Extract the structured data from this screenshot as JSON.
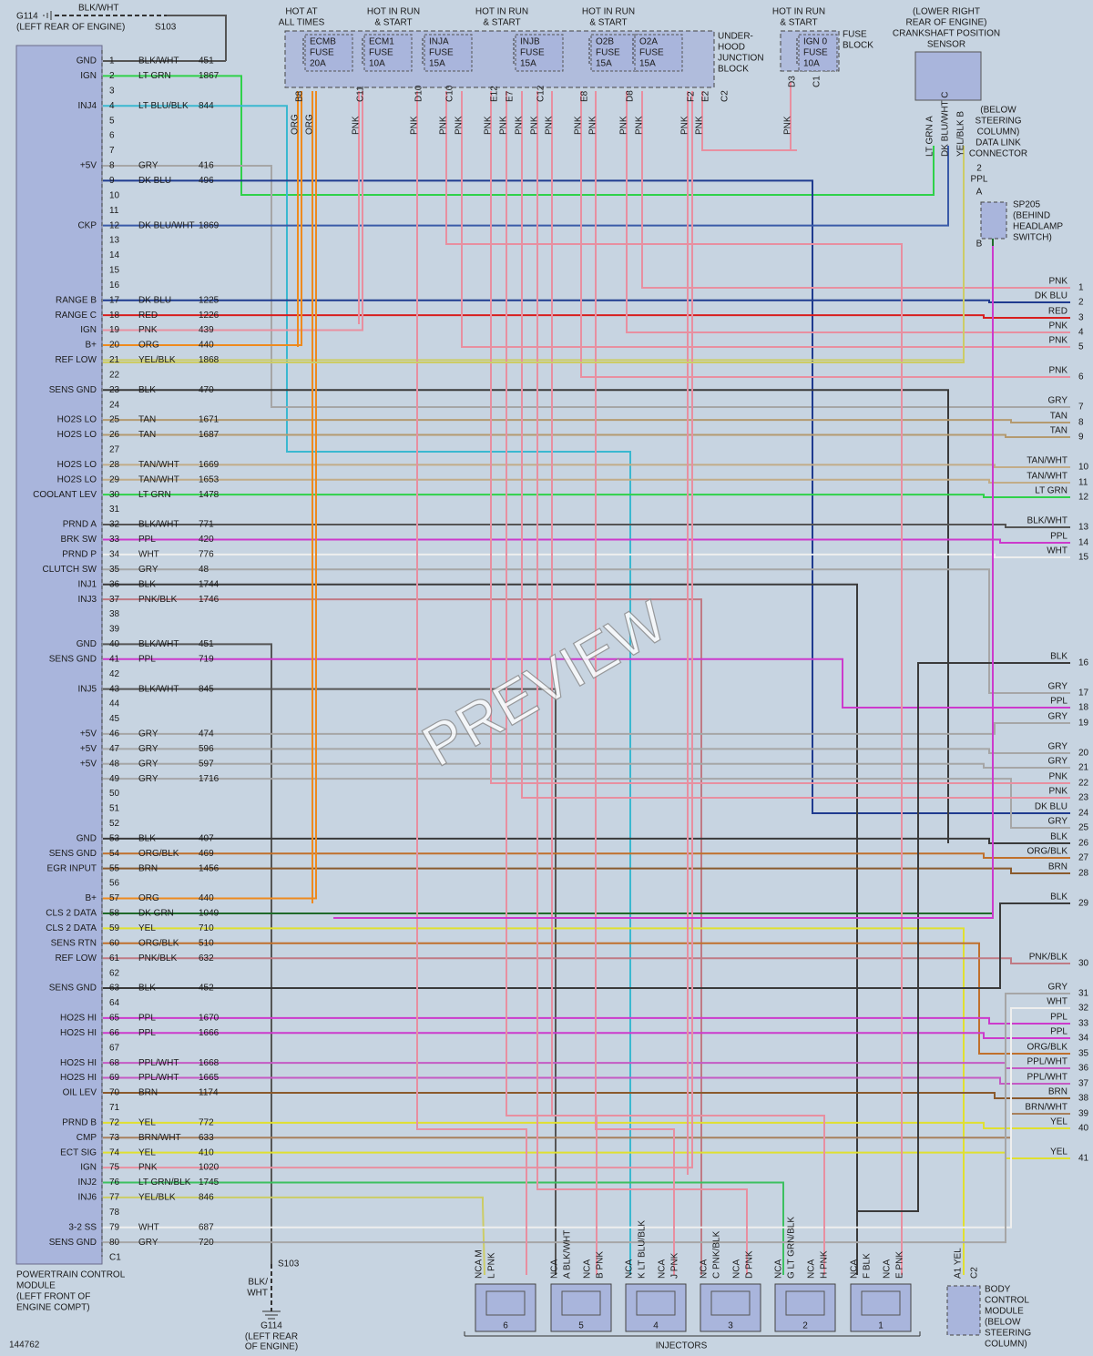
{
  "watermark": "PREVIEW",
  "diagram_id": "144762",
  "ground_top": {
    "wire": "BLK/WHT",
    "name": "G114",
    "location": "(LEFT REAR OF ENGINE)",
    "splice": "S103"
  },
  "ground_bottom": {
    "splice": "S103",
    "wire": [
      "BLK/",
      "WHT"
    ],
    "name": "G114",
    "location": [
      "(LEFT REAR",
      "OF ENGINE)"
    ]
  },
  "pcm": {
    "name": [
      "POWERTRAIN CONTROL",
      "MODULE",
      "(LEFT FRONT OF",
      "ENGINE COMPT)"
    ],
    "connector": "C1",
    "pins": [
      [
        "1",
        "GND",
        "BLK/WHT",
        "451"
      ],
      [
        "2",
        "IGN",
        "LT GRN",
        "1867"
      ],
      [
        "3",
        null,
        null,
        null
      ],
      [
        "4",
        "INJ4",
        "LT BLU/BLK",
        "844"
      ],
      [
        "5",
        null,
        null,
        null
      ],
      [
        "6",
        null,
        null,
        null
      ],
      [
        "7",
        null,
        null,
        null
      ],
      [
        "8",
        "+5V",
        "GRY",
        "416"
      ],
      [
        "9",
        null,
        "DK BLU",
        "496"
      ],
      [
        "10",
        null,
        null,
        null
      ],
      [
        "11",
        null,
        null,
        null
      ],
      [
        "12",
        "CKP",
        "DK BLU/WHT",
        "1869"
      ],
      [
        "13",
        null,
        null,
        null
      ],
      [
        "14",
        null,
        null,
        null
      ],
      [
        "15",
        null,
        null,
        null
      ],
      [
        "16",
        null,
        null,
        null
      ],
      [
        "17",
        "RANGE B",
        "DK BLU",
        "1225"
      ],
      [
        "18",
        "RANGE C",
        "RED",
        "1226"
      ],
      [
        "19",
        "IGN",
        "PNK",
        "439"
      ],
      [
        "20",
        "B+",
        "ORG",
        "440"
      ],
      [
        "21",
        "REF LOW",
        "YEL/BLK",
        "1868"
      ],
      [
        "22",
        null,
        null,
        null
      ],
      [
        "23",
        "SENS GND",
        "BLK",
        "470"
      ],
      [
        "24",
        null,
        null,
        null
      ],
      [
        "25",
        "HO2S LO",
        "TAN",
        "1671"
      ],
      [
        "26",
        "HO2S LO",
        "TAN",
        "1687"
      ],
      [
        "27",
        null,
        null,
        null
      ],
      [
        "28",
        "HO2S LO",
        "TAN/WHT",
        "1669"
      ],
      [
        "29",
        "HO2S LO",
        "TAN/WHT",
        "1653"
      ],
      [
        "30",
        "COOLANT LEV",
        "LT GRN",
        "1478"
      ],
      [
        "31",
        null,
        null,
        null
      ],
      [
        "32",
        "PRND A",
        "BLK/WHT",
        "771"
      ],
      [
        "33",
        "BRK SW",
        "PPL",
        "420"
      ],
      [
        "34",
        "PRND P",
        "WHT",
        "776"
      ],
      [
        "35",
        "CLUTCH SW",
        "GRY",
        "48"
      ],
      [
        "36",
        "INJ1",
        "BLK",
        "1744"
      ],
      [
        "37",
        "INJ3",
        "PNK/BLK",
        "1746"
      ],
      [
        "38",
        null,
        null,
        null
      ],
      [
        "39",
        null,
        null,
        null
      ],
      [
        "40",
        "GND",
        "BLK/WHT",
        "451"
      ],
      [
        "41",
        "SENS GND",
        "PPL",
        "719"
      ],
      [
        "42",
        null,
        null,
        null
      ],
      [
        "43",
        "INJ5",
        "BLK/WHT",
        "845"
      ],
      [
        "44",
        null,
        null,
        null
      ],
      [
        "45",
        null,
        null,
        null
      ],
      [
        "46",
        "+5V",
        "GRY",
        "474"
      ],
      [
        "47",
        "+5V",
        "GRY",
        "596"
      ],
      [
        "48",
        "+5V",
        "GRY",
        "597"
      ],
      [
        "49",
        null,
        "GRY",
        "1716"
      ],
      [
        "50",
        null,
        null,
        null
      ],
      [
        "51",
        null,
        null,
        null
      ],
      [
        "52",
        null,
        null,
        null
      ],
      [
        "53",
        "GND",
        "BLK",
        "407"
      ],
      [
        "54",
        "SENS GND",
        "ORG/BLK",
        "469"
      ],
      [
        "55",
        "EGR INPUT",
        "BRN",
        "1456"
      ],
      [
        "56",
        null,
        null,
        null
      ],
      [
        "57",
        "B+",
        "ORG",
        "440"
      ],
      [
        "58",
        "CLS 2 DATA",
        "DK GRN",
        "1049"
      ],
      [
        "59",
        "CLS 2 DATA",
        "YEL",
        "710"
      ],
      [
        "60",
        "SENS RTN",
        "ORG/BLK",
        "510"
      ],
      [
        "61",
        "REF LOW",
        "PNK/BLK",
        "632"
      ],
      [
        "62",
        null,
        null,
        null
      ],
      [
        "63",
        "SENS GND",
        "BLK",
        "452"
      ],
      [
        "64",
        null,
        null,
        null
      ],
      [
        "65",
        "HO2S HI",
        "PPL",
        "1670"
      ],
      [
        "66",
        "HO2S HI",
        "PPL",
        "1666"
      ],
      [
        "67",
        null,
        null,
        null
      ],
      [
        "68",
        "HO2S HI",
        "PPL/WHT",
        "1668"
      ],
      [
        "69",
        "HO2S HI",
        "PPL/WHT",
        "1665"
      ],
      [
        "70",
        "OIL LEV",
        "BRN",
        "1174"
      ],
      [
        "71",
        null,
        null,
        null
      ],
      [
        "72",
        "PRND B",
        "YEL",
        "772"
      ],
      [
        "73",
        "CMP",
        "BRN/WHT",
        "633"
      ],
      [
        "74",
        "ECT SIG",
        "YEL",
        "410"
      ],
      [
        "75",
        "IGN",
        "PNK",
        "1020"
      ],
      [
        "76",
        "INJ2",
        "LT GRN/BLK",
        "1745"
      ],
      [
        "77",
        "INJ6",
        "YEL/BLK",
        "846"
      ],
      [
        "78",
        null,
        null,
        null
      ],
      [
        "79",
        "3-2 SS",
        "WHT",
        "687"
      ],
      [
        "80",
        "SENS GND",
        "GRY",
        "720"
      ]
    ]
  },
  "fuse_groups": [
    [
      "HOT AT",
      "ALL TIMES"
    ],
    [
      "HOT IN RUN",
      "& START"
    ],
    [
      "HOT IN RUN",
      "& START"
    ],
    [
      "HOT IN RUN",
      "& START"
    ],
    [
      "HOT IN RUN",
      "& START"
    ]
  ],
  "fuses": [
    [
      "ECMB",
      "FUSE",
      "20A"
    ],
    [
      "ECM1",
      "FUSE",
      "10A"
    ],
    [
      "INJA",
      "FUSE",
      "15A"
    ],
    [
      "INJB",
      "FUSE",
      "15A"
    ],
    [
      "O2B",
      "FUSE",
      "15A"
    ],
    [
      "O2A",
      "FUSE",
      "15A"
    ],
    [
      "IGN 0",
      "FUSE",
      "10A"
    ]
  ],
  "underhood_block": [
    "UNDER-",
    "HOOD",
    "JUNCTION",
    "BLOCK"
  ],
  "fuse_block": [
    "FUSE",
    "BLOCK"
  ],
  "block_pins": [
    "B8",
    "C11",
    "D10",
    "C10",
    "E12",
    "E7",
    "C12",
    "E8",
    "D8",
    "F2",
    "E2",
    "C2"
  ],
  "fuse_block_pins": [
    "D3",
    "C1"
  ],
  "vertical_wires": [
    "ORG",
    "ORG",
    "PNK",
    "PNK",
    "PNK",
    "PNK",
    "PNK",
    "PNK",
    "PNK",
    "PNK",
    "PNK",
    "PNK",
    "PNK",
    "PNK",
    "PNK",
    "PNK",
    "PNK",
    "PNK"
  ],
  "ckp_sensor": {
    "name": [
      "(LOWER RIGHT",
      "REAR OF ENGINE)",
      "CRANKSHAFT POSITION",
      "SENSOR"
    ],
    "pins": [
      "LT GRN A",
      "DK BLU/WHT C",
      "YEL/BLK B"
    ]
  },
  "dlc": {
    "name": [
      "(BELOW",
      "STEERING",
      "COLUMN)",
      "DATA LINK",
      "CONNECTOR"
    ],
    "pin": "2",
    "wire": "PPL"
  },
  "splice_sp205": {
    "name": [
      "SP205",
      "(BEHIND",
      "HEADLAMP",
      "SWITCH)"
    ],
    "ends": [
      "A",
      "B"
    ]
  },
  "right_connector": [
    [
      "PNK",
      "1"
    ],
    [
      "DK BLU",
      "2"
    ],
    [
      "RED",
      "3"
    ],
    [
      "PNK",
      "4"
    ],
    [
      "PNK",
      "5"
    ],
    [
      "PNK",
      "6"
    ],
    [
      "GRY",
      "7"
    ],
    [
      "TAN",
      "8"
    ],
    [
      "TAN",
      "9"
    ],
    [
      "TAN/WHT",
      "10"
    ],
    [
      "TAN/WHT",
      "11"
    ],
    [
      "LT GRN",
      "12"
    ],
    [
      "BLK/WHT",
      "13"
    ],
    [
      "PPL",
      "14"
    ],
    [
      "WHT",
      "15"
    ],
    [
      "BLK",
      "16"
    ],
    [
      "GRY",
      "17"
    ],
    [
      "PPL",
      "18"
    ],
    [
      "GRY",
      "19"
    ],
    [
      "GRY",
      "20"
    ],
    [
      "GRY",
      "21"
    ],
    [
      "PNK",
      "22"
    ],
    [
      "PNK",
      "23"
    ],
    [
      "DK BLU",
      "24"
    ],
    [
      "GRY",
      "25"
    ],
    [
      "BLK",
      "26"
    ],
    [
      "ORG/BLK",
      "27"
    ],
    [
      "BRN",
      "28"
    ],
    [
      "BLK",
      "29"
    ],
    [
      "PNK/BLK",
      "30"
    ],
    [
      "GRY",
      "31"
    ],
    [
      "WHT",
      "32"
    ],
    [
      "PPL",
      "33"
    ],
    [
      "PPL",
      "34"
    ],
    [
      "ORG/BLK",
      "35"
    ],
    [
      "PPL/WHT",
      "36"
    ],
    [
      "PPL/WHT",
      "37"
    ],
    [
      "BRN",
      "38"
    ],
    [
      "BRN/WHT",
      "39"
    ],
    [
      "YEL",
      "40"
    ],
    [
      "YEL",
      "41"
    ]
  ],
  "injectors": {
    "title": "INJECTORS",
    "units": [
      {
        "number": "6",
        "pins": [
          "NCA M",
          "L PNK"
        ]
      },
      {
        "number": "5",
        "pins": [
          "NCA",
          "A BLK/WHT",
          "NCA",
          "B PNK"
        ]
      },
      {
        "number": "4",
        "pins": [
          "NCA",
          "K LT BLU/BLK",
          "NCA",
          "J PNK"
        ]
      },
      {
        "number": "3",
        "pins": [
          "NCA",
          "C PNK/BLK",
          "NCA",
          "D PNK"
        ]
      },
      {
        "number": "2",
        "pins": [
          "NCA",
          "G LT GRN/BLK",
          "NCA",
          "H PNK"
        ]
      },
      {
        "number": "1",
        "pins": [
          "NCA",
          "F BLK",
          "NCA",
          "E PNK"
        ]
      }
    ]
  },
  "bcm": {
    "pins": [
      "A1 YEL",
      "C2"
    ],
    "name": [
      "BODY",
      "CONTROL",
      "MODULE",
      "(BELOW",
      "STEERING",
      "COLUMN)"
    ]
  },
  "wire_colors": {
    "PNK": "#e88fa0",
    "DK BLU": "#1f3b8f",
    "RED": "#d81e1e",
    "GRY": "#a6a6a6",
    "TAN": "#b49a70",
    "TAN/WHT": "#c2ac88",
    "LT GRN": "#2fd14a",
    "BLK/WHT": "#555555",
    "PPL": "#cc3acc",
    "WHT": "#eeeeee",
    "BLK": "#3a3a3a",
    "ORG/BLK": "#c0702c",
    "BRN": "#8a5a2c",
    "PNK/BLK": "#c07a84",
    "PPL/WHT": "#c45ac4",
    "BRN/WHT": "#a8805c",
    "YEL": "#e0e030",
    "ORG": "#ee8a1e",
    "DK GRN": "#1f6a2a",
    "YEL/BLK": "#cccc66",
    "LT BLU/BLK": "#3ab8d0",
    "DK BLU/WHT": "#3a5aa8",
    "LT GRN/BLK": "#3cc060"
  }
}
